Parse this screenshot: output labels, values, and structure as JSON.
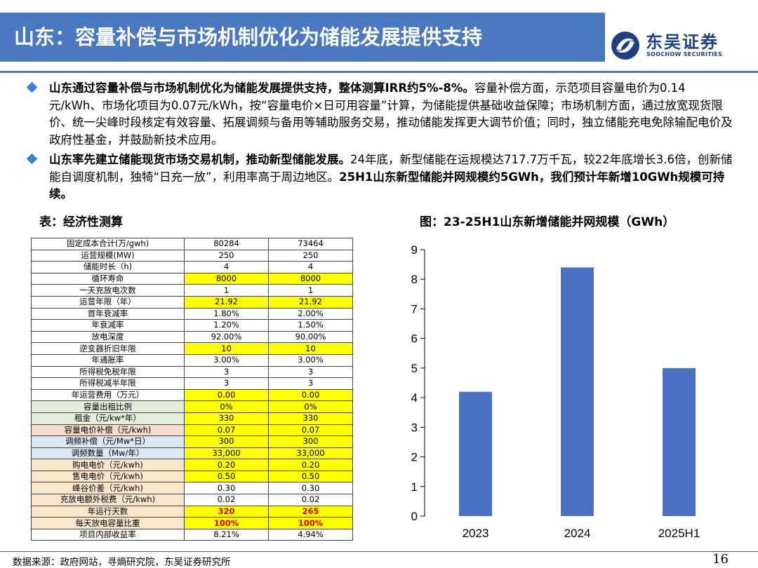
{
  "header": {
    "title": "山东：容量补偿与市场机制优化为储能发展提供支持"
  },
  "logo": {
    "cn": "东吴证券",
    "en": "SOOCHOW SECURITIES"
  },
  "bullets": [
    {
      "bold": "山东通过容量补偿与市场机制优化为储能发展提供支持，整体测算IRR约5%-8%。",
      "rest": "容量补偿方面，示范项目容量电价为0.14元/kWh、市场化项目为0.07元/kWh，按“容量电价×日可用容量”计算，为储能提供基础收益保障；市场机制方面，通过放宽现货限价、统一尖峰时段核定有效容量、拓展调频与备用等辅助服务交易，推动储能发挥更大调节价值；同时，独立储能充电免除输配电价及政府性基金，并鼓励新技术应用。",
      "tail": ""
    },
    {
      "bold": "山东率先建立储能现货市场交易机制，推动新型储能发展。",
      "rest": "24年底，新型储能在运规模达717.7万千瓦，较22年底增长3.6倍，创新储能自调度机制，独犄“日充一放”，利用率高于周边地区。",
      "tail": "25H1山东新型储能并网规模约5GWh，我们预计年新增10GWh规模可持续。"
    }
  ],
  "table_title": "表：经济性测算",
  "table_rows": [
    {
      "label": "固定成本合计(万/gwh)",
      "v1": "80284",
      "v2": "73464",
      "lab_bg": "",
      "val_bg": "",
      "red": false
    },
    {
      "label": "运营规模(MW)",
      "v1": "250",
      "v2": "250",
      "lab_bg": "",
      "val_bg": "",
      "red": false
    },
    {
      "label": "储能时长（h)",
      "v1": "4",
      "v2": "4",
      "lab_bg": "",
      "val_bg": "",
      "red": false
    },
    {
      "label": "循环寿命",
      "v1": "8000",
      "v2": "8000",
      "lab_bg": "",
      "val_bg": "yel",
      "red": false
    },
    {
      "label": "一天充放电次数",
      "v1": "1",
      "v2": "1",
      "lab_bg": "",
      "val_bg": "",
      "red": false
    },
    {
      "label": "运营年限（年）",
      "v1": "21.92",
      "v2": "21.92",
      "lab_bg": "",
      "val_bg": "yel",
      "red": false
    },
    {
      "label": "首年衰减率",
      "v1": "1.80%",
      "v2": "2.00%",
      "lab_bg": "",
      "val_bg": "",
      "red": false
    },
    {
      "label": "年衰减率",
      "v1": "1.20%",
      "v2": "1.50%",
      "lab_bg": "",
      "val_bg": "",
      "red": false
    },
    {
      "label": "放电深度",
      "v1": "92.00%",
      "v2": "90.00%",
      "lab_bg": "",
      "val_bg": "",
      "red": false
    },
    {
      "label": "逆变器折旧年限",
      "v1": "10",
      "v2": "10",
      "lab_bg": "",
      "val_bg": "yel",
      "red": false
    },
    {
      "label": "年通胀率",
      "v1": "3.00%",
      "v2": "3.00%",
      "lab_bg": "",
      "val_bg": "",
      "red": false
    },
    {
      "label": "所得税免税年限",
      "v1": "3",
      "v2": "3",
      "lab_bg": "",
      "val_bg": "",
      "red": false
    },
    {
      "label": "所得税减半年限",
      "v1": "3",
      "v2": "3",
      "lab_bg": "",
      "val_bg": "",
      "red": false
    },
    {
      "label": "年运营费用（万元）",
      "v1": "0.00",
      "v2": "0.00",
      "lab_bg": "",
      "val_bg": "yel",
      "red": false
    },
    {
      "label": "容量出租比例",
      "v1": "0%",
      "v2": "0%",
      "lab_bg": "grn",
      "val_bg": "yel",
      "red": false
    },
    {
      "label": "租金（元/kw*年）",
      "v1": "330",
      "v2": "330",
      "lab_bg": "grn",
      "val_bg": "yel",
      "red": false
    },
    {
      "label": "容量电价补偿（元/kwh)",
      "v1": "0.07",
      "v2": "0.07",
      "lab_bg": "pink",
      "val_bg": "yel",
      "red": false
    },
    {
      "label": "调频补偿（元/Mw*日）",
      "v1": "300",
      "v2": "300",
      "lab_bg": "blue",
      "val_bg": "yel",
      "red": false
    },
    {
      "label": "调频数量（Mw/年）",
      "v1": "33,000",
      "v2": "33,000",
      "lab_bg": "blue",
      "val_bg": "yel",
      "red": false
    },
    {
      "label": "购电电价（元/kwh)",
      "v1": "0.20",
      "v2": "0.20",
      "lab_bg": "peach",
      "val_bg": "yel",
      "red": false
    },
    {
      "label": "售电电价（元/kwh)",
      "v1": "0.50",
      "v2": "0.50",
      "lab_bg": "peach",
      "val_bg": "yel",
      "red": false
    },
    {
      "label": "峰谷价差（元/kwh)",
      "v1": "0.30",
      "v2": "0.30",
      "lab_bg": "peach",
      "val_bg": "",
      "red": false
    },
    {
      "label": "充放电额外税费（元/kwh)",
      "v1": "0.02",
      "v2": "0.02",
      "lab_bg": "peach",
      "val_bg": "",
      "red": false
    },
    {
      "label": "年运行天数",
      "v1": "320",
      "v2": "265",
      "lab_bg": "peach",
      "val_bg": "yel",
      "red": true
    },
    {
      "label": "每天放电容量比重",
      "v1": "100%",
      "v2": "100%",
      "lab_bg": "peach",
      "val_bg": "yel",
      "red": true
    },
    {
      "label": "项目内部收益率",
      "v1": "8.21%",
      "v2": "4.94%",
      "lab_bg": "",
      "val_bg": "",
      "red": false
    }
  ],
  "chart_heading": "图：23-25H1山东新增储能并网规模（GWh）",
  "chart_data": {
    "type": "bar",
    "title": "图：23-25H1山东新增储能并网规模（GWh）",
    "categories": [
      "2023",
      "2024",
      "2025H1"
    ],
    "values": [
      4.2,
      8.4,
      5.0
    ],
    "ylim": [
      0,
      9
    ],
    "yticks": [
      0,
      1,
      2,
      3,
      4,
      5,
      6,
      7,
      8,
      9
    ],
    "xlabel": "",
    "ylabel": "",
    "grid": false,
    "bar_color": "#4a72c4"
  },
  "footer": {
    "source": "数据来源：政府网站，寻熵研究院，东吴证券研究所",
    "page": "16"
  }
}
